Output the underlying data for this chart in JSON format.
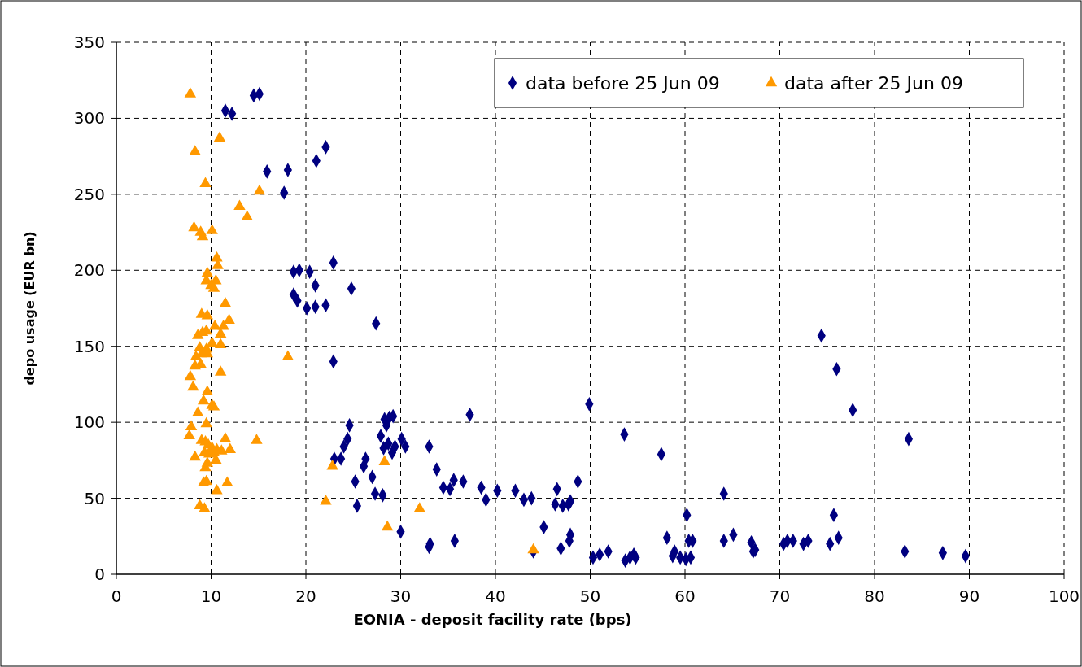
{
  "chart_data": {
    "type": "scatter",
    "xlabel": "EONIA - deposit facility rate (bps)",
    "ylabel": "depo usage (EUR bn)",
    "xlim": [
      0,
      100
    ],
    "xticks": [
      0,
      10,
      20,
      30,
      40,
      50,
      60,
      70,
      80,
      90,
      100
    ],
    "ylim": [
      0,
      350
    ],
    "yticks": [
      0,
      50,
      100,
      150,
      200,
      250,
      300,
      350
    ],
    "grid": true,
    "legend": "top right",
    "series": [
      {
        "name": "data before 25 Jun 09",
        "color": "#000080",
        "marker": "diamond",
        "x": [
          11.5,
          12.2,
          14.5,
          15.1,
          15.9,
          18.1,
          17.7,
          22.1,
          21.1,
          18.7,
          19.3,
          20.4,
          22.9,
          18.7,
          19.1,
          20.1,
          21.0,
          22.1,
          21.0,
          24.8,
          27.4,
          22.9,
          24.4,
          23.0,
          24.6,
          24.0,
          23.7,
          25.2,
          25.4,
          26.3,
          26.1,
          27.0,
          27.3,
          27.9,
          28.2,
          28.3,
          28.8,
          29.2,
          28.5,
          28.7,
          29.4,
          29.1,
          30.1,
          30.5,
          28.1,
          30.0,
          33.0,
          33.8,
          33.1,
          33.0,
          34.5,
          35.2,
          35.6,
          35.7,
          36.6,
          37.3,
          38.5,
          39.0,
          40.2,
          42.1,
          43.0,
          43.8,
          44.0,
          45.1,
          46.5,
          46.3,
          47.7,
          47.1,
          47.8,
          47.9,
          47.9,
          48.7,
          46.9,
          49.9,
          50.3,
          51.0,
          51.9,
          53.6,
          53.7,
          54.2,
          54.6,
          54.8,
          57.5,
          58.1,
          58.7,
          58.9,
          59.5,
          60.1,
          60.2,
          60.4,
          60.6,
          60.8,
          64.1,
          64.1,
          65.1,
          67.0,
          67.2,
          67.4,
          70.4,
          70.8,
          71.4,
          72.5,
          73.0,
          74.4,
          75.3,
          75.7,
          76.0,
          76.2,
          77.7,
          83.2,
          83.6,
          87.2,
          89.6
        ],
        "values": [
          305,
          303,
          315,
          316,
          265,
          266,
          251,
          281,
          272,
          199,
          200,
          199,
          205,
          184,
          180,
          175,
          176,
          177,
          190,
          188,
          165,
          140,
          89,
          76,
          98,
          84,
          76,
          61,
          45,
          76,
          71,
          64,
          53,
          91,
          83,
          102,
          103,
          104,
          98,
          86,
          84,
          80,
          89,
          84,
          52,
          28,
          84,
          69,
          20,
          18,
          57,
          56,
          62,
          22,
          61,
          105,
          57,
          49,
          55,
          55,
          49,
          50,
          15,
          31,
          56,
          46,
          46,
          45,
          22,
          26,
          48,
          61,
          17,
          112,
          11,
          13,
          15,
          92,
          9,
          11,
          13,
          11,
          79,
          24,
          12,
          15,
          11,
          10,
          39,
          22,
          11,
          22,
          53,
          22,
          26,
          21,
          15,
          16,
          20,
          22,
          22,
          20,
          22,
          157,
          20,
          39,
          135,
          24,
          108,
          15,
          89,
          14,
          12
        ]
      },
      {
        "name": "data after 25 Jun 09",
        "color": "#ff9900",
        "marker": "triangle",
        "x": [
          7.8,
          8.3,
          9.4,
          10.9,
          13.0,
          13.8,
          15.1,
          8.2,
          8.9,
          9.1,
          10.1,
          9.5,
          9.6,
          10.0,
          10.3,
          10.5,
          10.6,
          10.7,
          11.5,
          11.9,
          9.0,
          9.6,
          8.6,
          9.1,
          9.5,
          10.4,
          11.0,
          11.3,
          8.8,
          8.4,
          9.0,
          9.5,
          10.1,
          11.0,
          7.8,
          8.3,
          8.9,
          9.6,
          11.0,
          8.1,
          9.2,
          9.6,
          10.3,
          8.6,
          9.5,
          10.1,
          7.9,
          7.7,
          8.3,
          9.0,
          9.4,
          9.7,
          10.1,
          10.6,
          11.5,
          12.0,
          9.3,
          9.8,
          10.3,
          11.1,
          9.4,
          9.6,
          10.5,
          9.2,
          9.5,
          11.7,
          10.6,
          8.8,
          9.3,
          14.8,
          18.1,
          22.1,
          22.8,
          28.3,
          28.6,
          32.0,
          44.0
        ],
        "values": [
          316,
          278,
          257,
          287,
          242,
          235,
          252,
          228,
          225,
          222,
          226,
          193,
          198,
          190,
          188,
          193,
          208,
          203,
          178,
          167,
          171,
          170,
          157,
          159,
          160,
          163,
          158,
          163,
          149,
          143,
          145,
          148,
          152,
          151,
          130,
          137,
          138,
          145,
          133,
          123,
          114,
          120,
          110,
          106,
          99,
          111,
          97,
          91,
          77,
          88,
          87,
          85,
          83,
          82,
          89,
          82,
          80,
          79,
          80,
          81,
          70,
          73,
          75,
          60,
          61,
          60,
          55,
          45,
          43,
          88,
          143,
          48,
          71,
          74,
          31,
          43,
          16
        ]
      }
    ]
  }
}
